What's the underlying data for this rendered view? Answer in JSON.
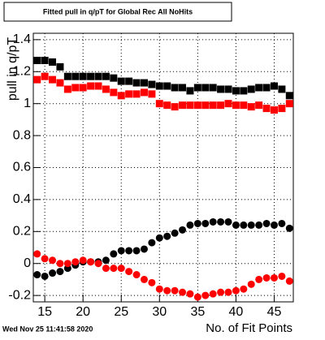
{
  "chart_data": {
    "type": "scatter",
    "title": "Fitted pull in q/pT for Global Rec All NoHits",
    "y_label": "pull in q/pT",
    "x_label": "No. of Fit Points",
    "timestamp": "Wed Nov 25 11:41:58 2020",
    "x": [
      14,
      15,
      16,
      17,
      18,
      19,
      20,
      21,
      22,
      23,
      24,
      25,
      26,
      27,
      28,
      29,
      30,
      31,
      32,
      33,
      34,
      35,
      36,
      37,
      38,
      39,
      40,
      41,
      42,
      43,
      44,
      45,
      46,
      47
    ],
    "series": [
      {
        "color": "#000000",
        "marker": "square",
        "values": [
          1.27,
          1.27,
          1.26,
          1.23,
          1.17,
          1.17,
          1.17,
          1.17,
          1.17,
          1.17,
          1.16,
          1.14,
          1.14,
          1.13,
          1.13,
          1.12,
          1.11,
          1.11,
          1.1,
          1.1,
          1.08,
          1.1,
          1.1,
          1.1,
          1.09,
          1.09,
          1.08,
          1.08,
          1.09,
          1.1,
          1.1,
          1.11,
          1.09,
          1.05
        ]
      },
      {
        "color": "#ff0000",
        "marker": "square",
        "values": [
          1.15,
          1.17,
          1.15,
          1.13,
          1.09,
          1.1,
          1.1,
          1.11,
          1.11,
          1.09,
          1.07,
          1.05,
          1.06,
          1.06,
          1.07,
          1.06,
          1.0,
          0.99,
          0.98,
          0.99,
          0.99,
          0.99,
          0.99,
          0.99,
          0.99,
          1.0,
          0.99,
          0.99,
          0.98,
          0.99,
          0.97,
          0.96,
          0.97,
          1.0
        ]
      },
      {
        "color": "#000000",
        "marker": "circle",
        "values": [
          -0.07,
          -0.08,
          -0.06,
          -0.05,
          -0.03,
          -0.01,
          0.01,
          0.01,
          0.01,
          0.02,
          0.06,
          0.08,
          0.08,
          0.08,
          0.09,
          0.13,
          0.16,
          0.17,
          0.19,
          0.21,
          0.24,
          0.25,
          0.25,
          0.26,
          0.26,
          0.26,
          0.24,
          0.24,
          0.24,
          0.24,
          0.25,
          0.24,
          0.25,
          0.22
        ]
      },
      {
        "color": "#ff0000",
        "marker": "circle",
        "values": [
          0.06,
          0.03,
          0.02,
          0.0,
          0.0,
          0.01,
          0.02,
          0.01,
          0.0,
          -0.03,
          -0.03,
          -0.03,
          -0.05,
          -0.07,
          -0.1,
          -0.12,
          -0.16,
          -0.17,
          -0.17,
          -0.18,
          -0.19,
          -0.21,
          -0.2,
          -0.19,
          -0.18,
          -0.18,
          -0.17,
          -0.16,
          -0.13,
          -0.1,
          -0.09,
          -0.09,
          -0.08,
          -0.11
        ]
      }
    ],
    "xlim": [
      13.5,
      47.5
    ],
    "xticks": [
      15,
      20,
      25,
      30,
      35,
      40,
      45
    ],
    "ylim": [
      -0.24,
      1.44
    ],
    "yticks": [
      -0.2,
      0,
      0.2,
      0.4,
      0.6,
      0.8,
      1,
      1.2,
      1.4
    ],
    "grid": true
  }
}
